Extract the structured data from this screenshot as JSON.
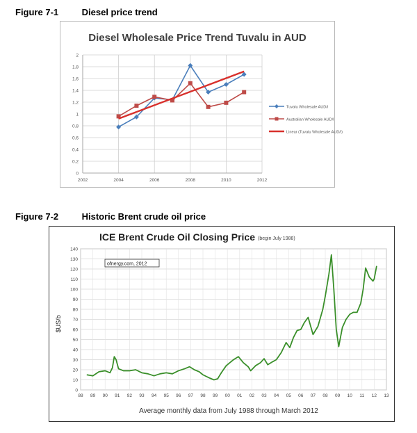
{
  "figures": [
    {
      "number": "Figure 7-1",
      "caption": "Diesel price trend"
    },
    {
      "number": "Figure 7-2",
      "caption": "Historic Brent crude oil price"
    }
  ],
  "chart_data": [
    {
      "type": "line",
      "title": "Diesel Wholesale Price Trend Tuvalu in AUD",
      "xlabel": "",
      "ylabel": "",
      "xlim": [
        2002,
        2012
      ],
      "ylim": [
        0,
        2
      ],
      "x_ticks": [
        "2002",
        "2004",
        "2006",
        "2008",
        "2010",
        "2012"
      ],
      "y_ticks": [
        "0",
        "0.2",
        "0.4",
        "0.6",
        "0.8",
        "1",
        "1.2",
        "1.4",
        "1.6",
        "1.8",
        "2"
      ],
      "grid": true,
      "legend_position": "right",
      "series": [
        {
          "name": "Tuvalu Wholesale AUD/l",
          "marker": "diamond",
          "color": "#4a7ebb",
          "x": [
            2004,
            2005,
            2006,
            2007,
            2008,
            2009,
            2010,
            2011
          ],
          "y": [
            0.78,
            0.95,
            1.27,
            1.24,
            1.82,
            1.37,
            1.5,
            1.67
          ]
        },
        {
          "name": "Australian Wholesale AUD/l",
          "marker": "square",
          "color": "#be4b48",
          "x": [
            2004,
            2005,
            2006,
            2007,
            2008,
            2009,
            2010,
            2011
          ],
          "y": [
            0.96,
            1.14,
            1.29,
            1.23,
            1.52,
            1.12,
            1.19,
            1.37
          ]
        },
        {
          "name": "Linear (Tuvalu Wholesale AUD/l)",
          "marker": "none",
          "color": "#d8302c",
          "x": [
            2004,
            2011
          ],
          "y": [
            0.92,
            1.72
          ]
        }
      ]
    },
    {
      "type": "line",
      "title": "ICE Brent Crude Oil Closing Price",
      "subtitle": "(begin July 1988)",
      "annotation": "ofnergy.com, 2012",
      "xlabel": "Average monthly data from July 1988 through March 2012",
      "ylabel": "$US/b",
      "xlim": [
        1988,
        2013
      ],
      "ylim": [
        0,
        140
      ],
      "x_ticks": [
        "88",
        "89",
        "90",
        "91",
        "92",
        "93",
        "94",
        "95",
        "96",
        "97",
        "98",
        "99",
        "00",
        "01",
        "02",
        "03",
        "04",
        "05",
        "06",
        "07",
        "08",
        "09",
        "10",
        "11",
        "12",
        "13"
      ],
      "y_ticks": [
        "0",
        "10",
        "20",
        "30",
        "40",
        "50",
        "60",
        "70",
        "80",
        "90",
        "100",
        "110",
        "120",
        "130",
        "140"
      ],
      "grid": true,
      "series": [
        {
          "name": "",
          "color": "#3a8f2a",
          "x": [
            1988.5,
            1989.0,
            1989.5,
            1990.0,
            1990.4,
            1990.6,
            1990.75,
            1990.9,
            1991.1,
            1991.5,
            1992.0,
            1992.5,
            1993.0,
            1993.5,
            1994.0,
            1994.5,
            1995.0,
            1995.5,
            1996.0,
            1996.5,
            1996.9,
            1997.3,
            1997.7,
            1998.0,
            1998.5,
            1998.9,
            1999.2,
            1999.5,
            1999.9,
            2000.2,
            2000.5,
            2000.9,
            2001.3,
            2001.7,
            2001.9,
            2002.3,
            2002.7,
            2003.0,
            2003.3,
            2003.7,
            2004.0,
            2004.4,
            2004.8,
            2005.1,
            2005.4,
            2005.7,
            2006.0,
            2006.3,
            2006.6,
            2007.0,
            2007.4,
            2007.8,
            2008.0,
            2008.3,
            2008.5,
            2008.7,
            2008.9,
            2009.1,
            2009.4,
            2009.7,
            2010.0,
            2010.3,
            2010.6,
            2010.9,
            2011.1,
            2011.3,
            2011.6,
            2011.9,
            2012.0,
            2012.2
          ],
          "y": [
            15,
            14,
            18,
            19,
            17,
            22,
            33,
            30,
            21,
            19,
            19,
            20,
            17,
            16,
            14,
            16,
            17,
            16,
            19,
            21,
            23,
            20,
            18,
            15,
            12,
            10,
            11,
            17,
            24,
            27,
            30,
            33,
            27,
            23,
            19,
            24,
            27,
            31,
            25,
            28,
            30,
            37,
            47,
            42,
            52,
            59,
            60,
            67,
            72,
            55,
            63,
            80,
            93,
            115,
            134,
            100,
            60,
            43,
            62,
            70,
            75,
            77,
            77,
            86,
            100,
            121,
            112,
            108,
            110,
            123
          ]
        }
      ]
    }
  ]
}
